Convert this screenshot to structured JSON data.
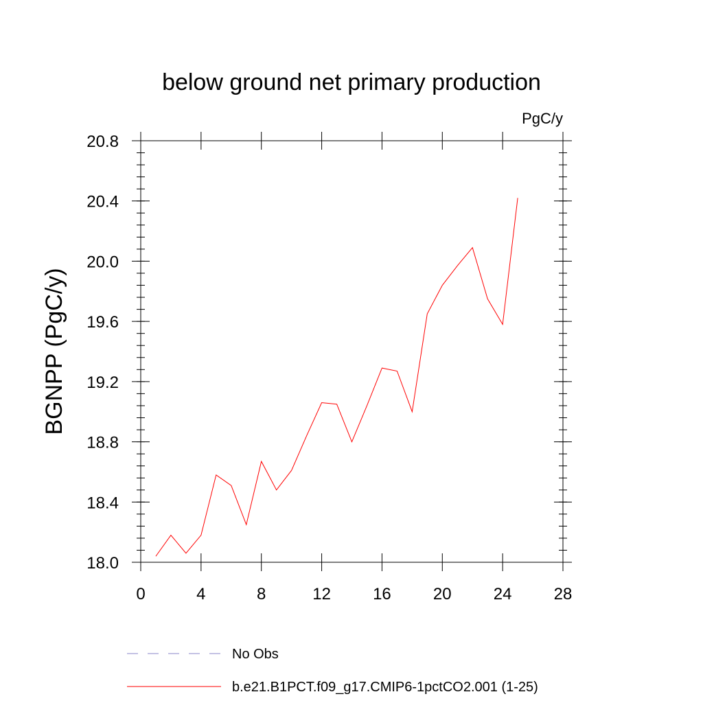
{
  "chart_data": {
    "type": "line",
    "title": "below ground net primary production",
    "units": "PgC/y",
    "ylabel": "BGNPP  (PgC/y)",
    "xlabel": "",
    "xlim": [
      0,
      28
    ],
    "ylim": [
      18.0,
      20.8
    ],
    "x_ticks": [
      0,
      4,
      8,
      12,
      16,
      20,
      24,
      28
    ],
    "x_tick_labels": [
      "0",
      "4",
      "8",
      "12",
      "16",
      "20",
      "24",
      "28"
    ],
    "x_minor_step": 4,
    "y_ticks": [
      18.0,
      18.4,
      18.8,
      19.2,
      19.6,
      20.0,
      20.4,
      20.8
    ],
    "y_tick_labels": [
      "18.0",
      "18.4",
      "18.8",
      "19.2",
      "19.6",
      "20.0",
      "20.4",
      "20.8"
    ],
    "y_minor_step": 0.08,
    "grid": false,
    "legend_position": "bottom",
    "series": [
      {
        "name": "b.e21.B1PCT.f09_g17.CMIP6-1pctCO2.001 (1-25)",
        "color": "#ff0000",
        "style": "solid",
        "x": [
          1,
          2,
          3,
          4,
          5,
          6,
          7,
          8,
          9,
          10,
          11,
          12,
          13,
          14,
          15,
          16,
          17,
          18,
          19,
          20,
          21,
          22,
          23,
          24,
          25
        ],
        "y": [
          18.04,
          18.18,
          18.06,
          18.18,
          18.58,
          18.51,
          18.25,
          18.67,
          18.48,
          18.61,
          18.84,
          19.06,
          19.05,
          18.8,
          19.04,
          19.29,
          19.27,
          19.0,
          19.65,
          19.84,
          19.97,
          20.09,
          19.75,
          19.58,
          20.42
        ]
      }
    ],
    "legend": [
      {
        "label": "No Obs",
        "color": "#8a84c8",
        "style": "dashed"
      },
      {
        "label": "b.e21.B1PCT.f09_g17.CMIP6-1pctCO2.001 (1-25)",
        "color": "#ff0000",
        "style": "solid"
      }
    ]
  }
}
